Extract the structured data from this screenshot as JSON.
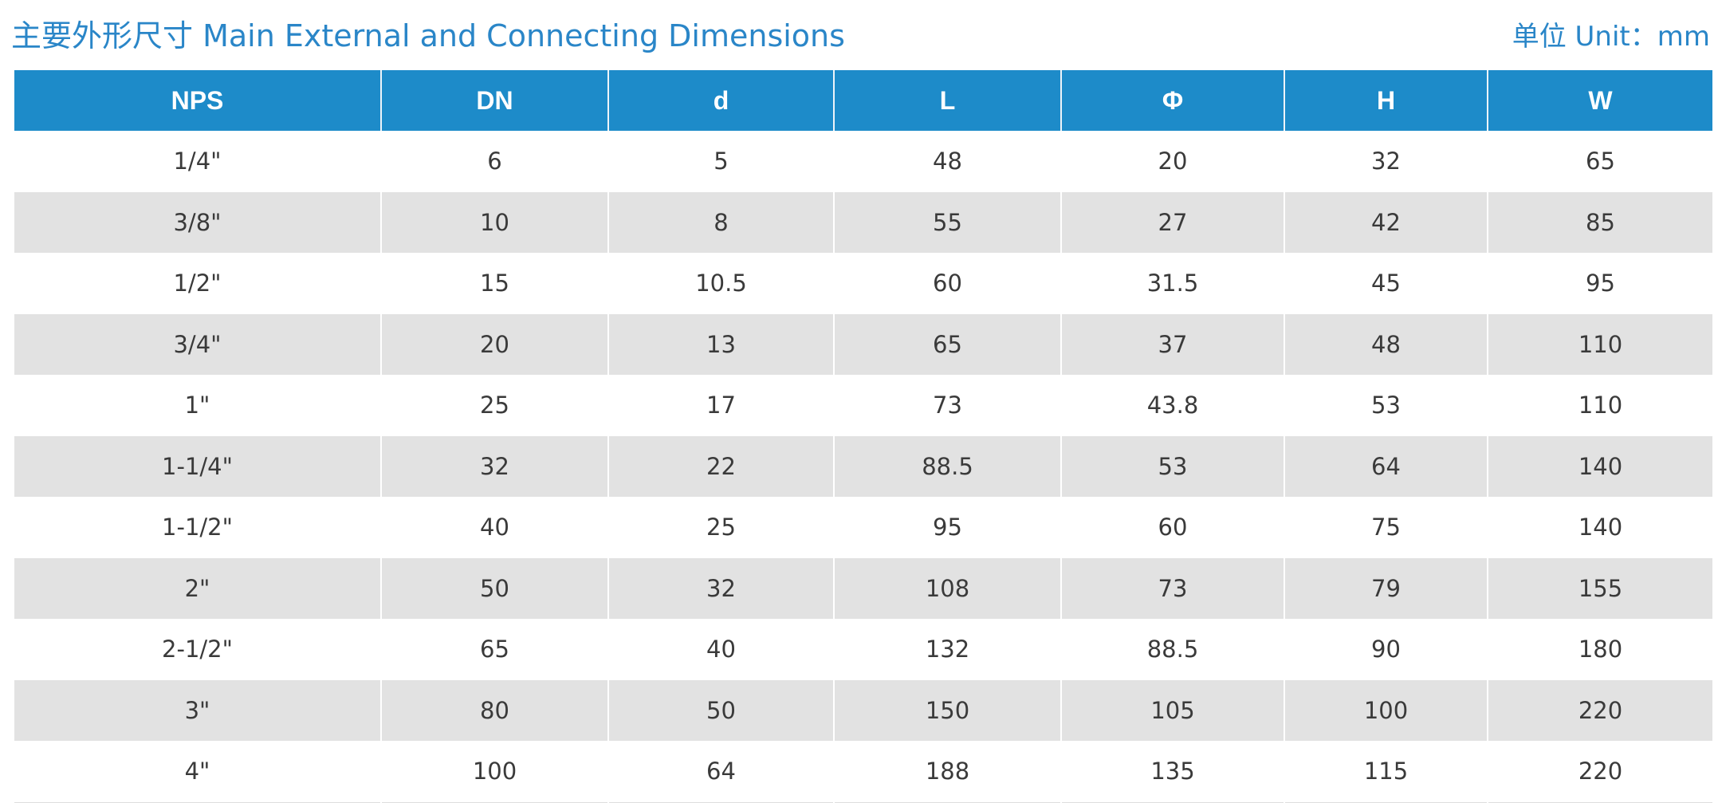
{
  "header": {
    "title": "主要外形尺寸 Main External and Connecting Dimensions",
    "unit": "单位 Unit：mm"
  },
  "table": {
    "columns": [
      "NPS",
      "DN",
      "d",
      "L",
      "Φ",
      "H",
      "W"
    ],
    "rows": [
      [
        "1/4\"",
        "6",
        "5",
        "48",
        "20",
        "32",
        "65"
      ],
      [
        "3/8\"",
        "10",
        "8",
        "55",
        "27",
        "42",
        "85"
      ],
      [
        "1/2\"",
        "15",
        "10.5",
        "60",
        "31.5",
        "45",
        "95"
      ],
      [
        "3/4\"",
        "20",
        "13",
        "65",
        "37",
        "48",
        "110"
      ],
      [
        "1\"",
        "25",
        "17",
        "73",
        "43.8",
        "53",
        "110"
      ],
      [
        "1-1/4\"",
        "32",
        "22",
        "88.5",
        "53",
        "64",
        "140"
      ],
      [
        "1-1/2\"",
        "40",
        "25",
        "95",
        "60",
        "75",
        "140"
      ],
      [
        "2\"",
        "50",
        "32",
        "108",
        "73",
        "79",
        "155"
      ],
      [
        "2-1/2\"",
        "65",
        "40",
        "132",
        "88.5",
        "90",
        "180"
      ],
      [
        "3\"",
        "80",
        "50",
        "150",
        "105",
        "100",
        "220"
      ],
      [
        "4\"",
        "100",
        "64",
        "188",
        "135",
        "115",
        "220"
      ]
    ]
  },
  "colors": {
    "accent": "#2a86c8",
    "header_bg": "#1d8bc9",
    "stripe": "#e2e2e2",
    "text": "#3a3a3a"
  }
}
